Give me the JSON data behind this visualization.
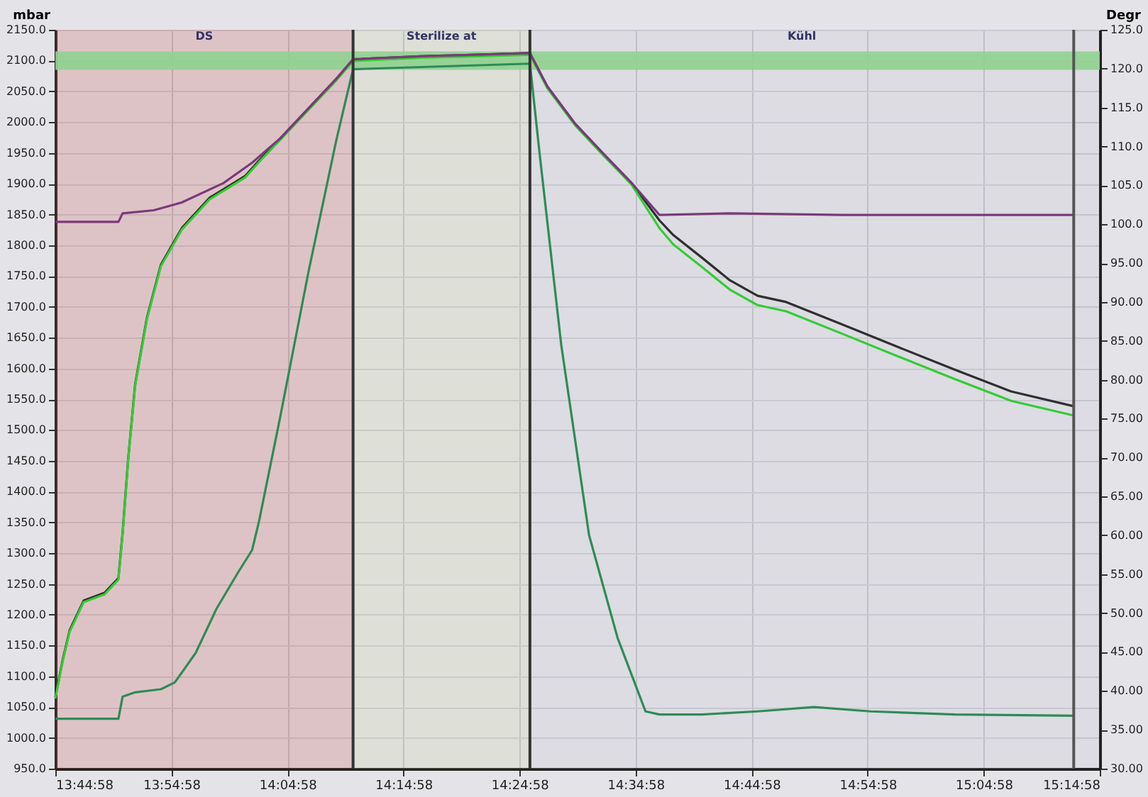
{
  "chart_data": {
    "type": "line",
    "ylabel": "mbar",
    "y2label": "Degr",
    "xlim": [
      13.7494,
      15.2494
    ],
    "xticks": [
      {
        "value": 13.7494,
        "label": "13:44:58"
      },
      {
        "value": 13.9161,
        "label": "13:54:58"
      },
      {
        "value": 14.0828,
        "label": "14:04:58"
      },
      {
        "value": 14.2494,
        "label": "14:14:58"
      },
      {
        "value": 14.4161,
        "label": "14:24:58"
      },
      {
        "value": 14.5828,
        "label": "14:34:58"
      },
      {
        "value": 14.7494,
        "label": "14:44:58"
      },
      {
        "value": 14.9161,
        "label": "14:54:58"
      },
      {
        "value": 15.0828,
        "label": "15:04:58"
      },
      {
        "value": 15.2494,
        "label": "15:14:58"
      }
    ],
    "ylim": [
      950,
      2150
    ],
    "yticks": [
      {
        "value": 950,
        "label": "950.0"
      },
      {
        "value": 1000,
        "label": "1000.0"
      },
      {
        "value": 1050,
        "label": "1050.0"
      },
      {
        "value": 1100,
        "label": "1100.0"
      },
      {
        "value": 1150,
        "label": "1150.0"
      },
      {
        "value": 1200,
        "label": "1200.0"
      },
      {
        "value": 1250,
        "label": "1250.0"
      },
      {
        "value": 1300,
        "label": "1300.0"
      },
      {
        "value": 1350,
        "label": "1350.0"
      },
      {
        "value": 1400,
        "label": "1400.0"
      },
      {
        "value": 1450,
        "label": "1450.0"
      },
      {
        "value": 1500,
        "label": "1500.0"
      },
      {
        "value": 1550,
        "label": "1550.0"
      },
      {
        "value": 1600,
        "label": "1600.0"
      },
      {
        "value": 1650,
        "label": "1650.0"
      },
      {
        "value": 1700,
        "label": "1700.0"
      },
      {
        "value": 1750,
        "label": "1750.0"
      },
      {
        "value": 1800,
        "label": "1800.0"
      },
      {
        "value": 1850,
        "label": "1850.0"
      },
      {
        "value": 1900,
        "label": "1900.0"
      },
      {
        "value": 1950,
        "label": "1950.0"
      },
      {
        "value": 2000,
        "label": "2000.0"
      },
      {
        "value": 2050,
        "label": "2050.0"
      },
      {
        "value": 2100,
        "label": "2100.0"
      },
      {
        "value": 2150,
        "label": "2150.0"
      }
    ],
    "y2lim": [
      30,
      125
    ],
    "y2ticks": [
      {
        "value": 30,
        "label": "30.00"
      },
      {
        "value": 35,
        "label": "35.00"
      },
      {
        "value": 40,
        "label": "40.00"
      },
      {
        "value": 45,
        "label": "45.00"
      },
      {
        "value": 50,
        "label": "50.00"
      },
      {
        "value": 55,
        "label": "55.00"
      },
      {
        "value": 60,
        "label": "60.00"
      },
      {
        "value": 65,
        "label": "65.00"
      },
      {
        "value": 70,
        "label": "70.00"
      },
      {
        "value": 75,
        "label": "75.00"
      },
      {
        "value": 80,
        "label": "80.00"
      },
      {
        "value": 85,
        "label": "85.00"
      },
      {
        "value": 90,
        "label": "90.00"
      },
      {
        "value": 95,
        "label": "95.00"
      },
      {
        "value": 100,
        "label": "100.0"
      },
      {
        "value": 105,
        "label": "105.0"
      },
      {
        "value": 110,
        "label": "110.0"
      },
      {
        "value": 115,
        "label": "115.0"
      },
      {
        "value": 120,
        "label": "120.0"
      },
      {
        "value": 125,
        "label": "125.0"
      }
    ],
    "grid": true,
    "series": [
      {
        "color": "#2e8b57",
        "x": [
          13.7494,
          13.84,
          13.846,
          13.864,
          13.901,
          13.921,
          13.951,
          13.981,
          14.012,
          14.032,
          14.042,
          14.072,
          14.113,
          14.153,
          14.177,
          14.431,
          14.445,
          14.476,
          14.516,
          14.557,
          14.597,
          14.617,
          14.678,
          14.758,
          14.839,
          14.92,
          15.041,
          15.212
        ],
        "values": [
          1031,
          1031,
          1067,
          1074,
          1079,
          1090,
          1138,
          1210,
          1269,
          1305,
          1352,
          1519,
          1757,
          1971,
          2086,
          2095,
          1948,
          1638,
          1329,
          1162,
          1043,
          1038,
          1038,
          1043,
          1050,
          1043,
          1038,
          1036
        ]
      },
      {
        "color": "#2f2f2f",
        "axis": "y2",
        "x": [
          13.7494,
          13.76,
          13.77,
          13.79,
          13.82,
          13.84,
          13.846,
          13.854,
          13.864,
          13.881,
          13.901,
          13.931,
          13.971,
          14.022,
          14.042,
          14.072,
          14.113,
          14.153,
          14.177,
          14.274,
          14.355,
          14.431,
          14.456,
          14.496,
          14.536,
          14.577,
          14.617,
          14.637,
          14.678,
          14.718,
          14.758,
          14.799,
          14.88,
          14.96,
          15.041,
          15.122,
          15.212
        ],
        "values": [
          39.2,
          44.0,
          47.8,
          51.6,
          52.6,
          54.5,
          60.3,
          69.8,
          79.4,
          88.0,
          94.8,
          99.5,
          103.4,
          106.2,
          108.2,
          111.0,
          114.9,
          118.7,
          121.2,
          121.6,
          121.8,
          122.0,
          117.7,
          112.9,
          109.1,
          105.3,
          100.5,
          98.6,
          95.7,
          92.8,
          90.8,
          90.0,
          87.1,
          84.2,
          81.3,
          78.5,
          76.6
        ]
      },
      {
        "color": "#33cc33",
        "axis": "y2",
        "x": [
          13.7494,
          13.76,
          13.77,
          13.79,
          13.82,
          13.84,
          13.846,
          13.854,
          13.864,
          13.881,
          13.901,
          13.931,
          13.971,
          14.022,
          14.042,
          14.072,
          14.113,
          14.153,
          14.177,
          14.274,
          14.355,
          14.431,
          14.456,
          14.496,
          14.536,
          14.577,
          14.617,
          14.637,
          14.678,
          14.718,
          14.758,
          14.799,
          14.88,
          14.96,
          15.041,
          15.122,
          15.212
        ],
        "values": [
          39.0,
          43.8,
          47.6,
          51.4,
          52.4,
          54.3,
          60.1,
          69.6,
          79.2,
          87.8,
          94.6,
          99.3,
          103.2,
          106.0,
          108.0,
          110.8,
          114.7,
          118.5,
          121.0,
          121.4,
          121.6,
          121.8,
          117.5,
          112.7,
          108.9,
          105.1,
          99.5,
          97.4,
          94.5,
          91.6,
          89.6,
          88.8,
          85.9,
          83.0,
          80.1,
          77.3,
          75.4
        ]
      },
      {
        "color": "#7a3a7a",
        "axis": "y2",
        "x": [
          13.7494,
          13.84,
          13.846,
          13.891,
          13.931,
          13.991,
          14.032,
          14.072,
          14.113,
          14.153,
          14.177,
          14.274,
          14.355,
          14.431,
          14.456,
          14.496,
          14.536,
          14.577,
          14.617,
          14.718,
          14.88,
          15.041,
          15.212
        ],
        "values": [
          100.3,
          100.3,
          101.4,
          101.8,
          102.8,
          105.3,
          107.9,
          111.0,
          114.9,
          118.7,
          121.2,
          121.6,
          121.8,
          122.0,
          117.7,
          112.9,
          109.1,
          105.3,
          101.2,
          101.4,
          101.2,
          101.2,
          101.2
        ]
      }
    ],
    "bands": [
      {
        "axis": "y",
        "from": 2085,
        "to": 2115,
        "color": "#8fd18f"
      },
      {
        "axis": "x",
        "from": 13.7494,
        "to": 14.177,
        "label": "DS",
        "color": "#e8605a"
      },
      {
        "axis": "x",
        "from": 14.177,
        "to": 14.431,
        "label": "Sterilize at",
        "color": "#e8ecb0"
      },
      {
        "axis": "x",
        "from": 14.431,
        "to": 15.212,
        "label": "Kühl",
        "color": "#dcdce6"
      }
    ],
    "ref_lines": [
      {
        "axis": "x",
        "value": 14.177,
        "color": "#333333"
      },
      {
        "axis": "x",
        "value": 14.431,
        "color": "#333333"
      },
      {
        "axis": "x",
        "value": 15.212,
        "color": "#555555"
      }
    ]
  }
}
